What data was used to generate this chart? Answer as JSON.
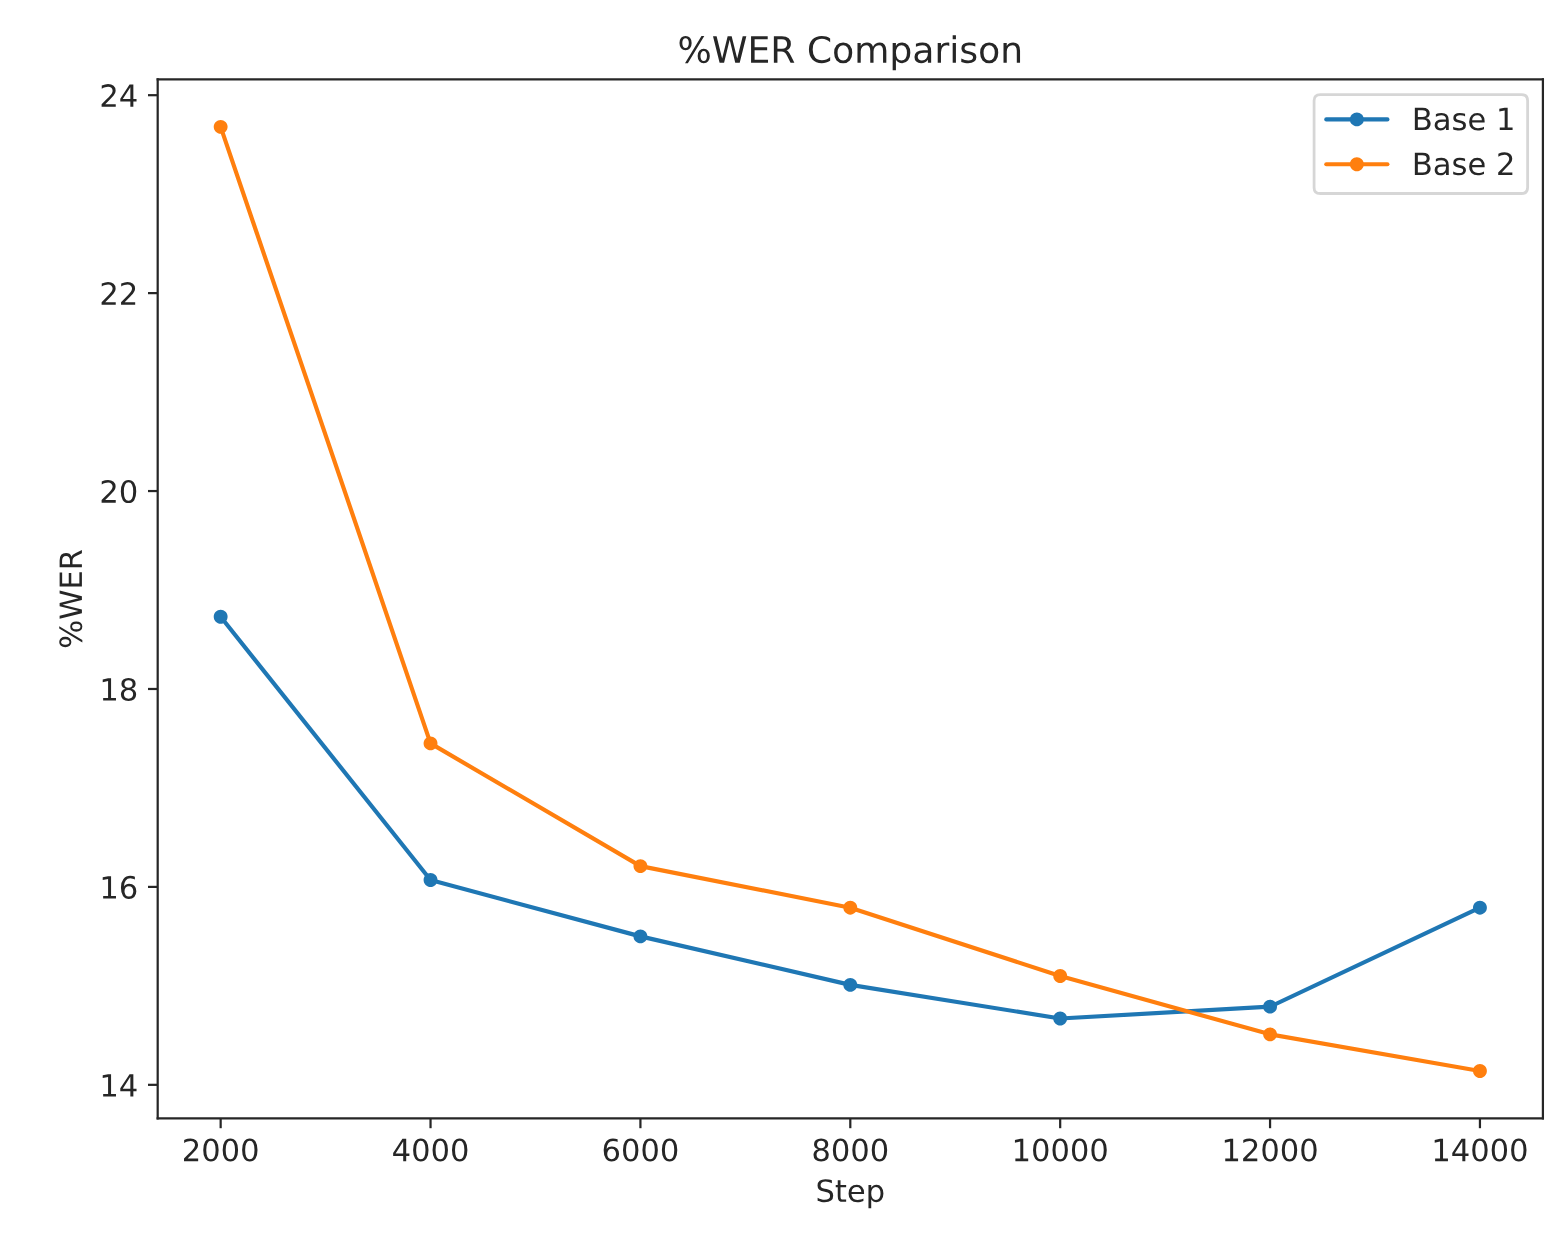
{
  "chart_data": {
    "type": "line",
    "title": "%WER Comparison",
    "xlabel": "Step",
    "ylabel": "%WER",
    "x": [
      2000,
      4000,
      6000,
      8000,
      10000,
      12000,
      14000
    ],
    "series": [
      {
        "name": "Base 1",
        "color": "#1f77b4",
        "values": [
          18.73,
          16.07,
          15.5,
          15.01,
          14.67,
          14.79,
          15.79
        ]
      },
      {
        "name": "Base 2",
        "color": "#ff7f0e",
        "values": [
          23.68,
          17.45,
          16.21,
          15.79,
          15.1,
          14.51,
          14.14
        ]
      }
    ],
    "xlim": [
      1400,
      14600
    ],
    "ylim": [
      13.66,
      24.16
    ],
    "xticks": [
      2000,
      4000,
      6000,
      8000,
      10000,
      12000,
      14000
    ],
    "yticks": [
      14,
      16,
      18,
      20,
      22,
      24
    ],
    "marker": "circle",
    "line_style": "solid",
    "legend": "top right",
    "grid": false
  }
}
